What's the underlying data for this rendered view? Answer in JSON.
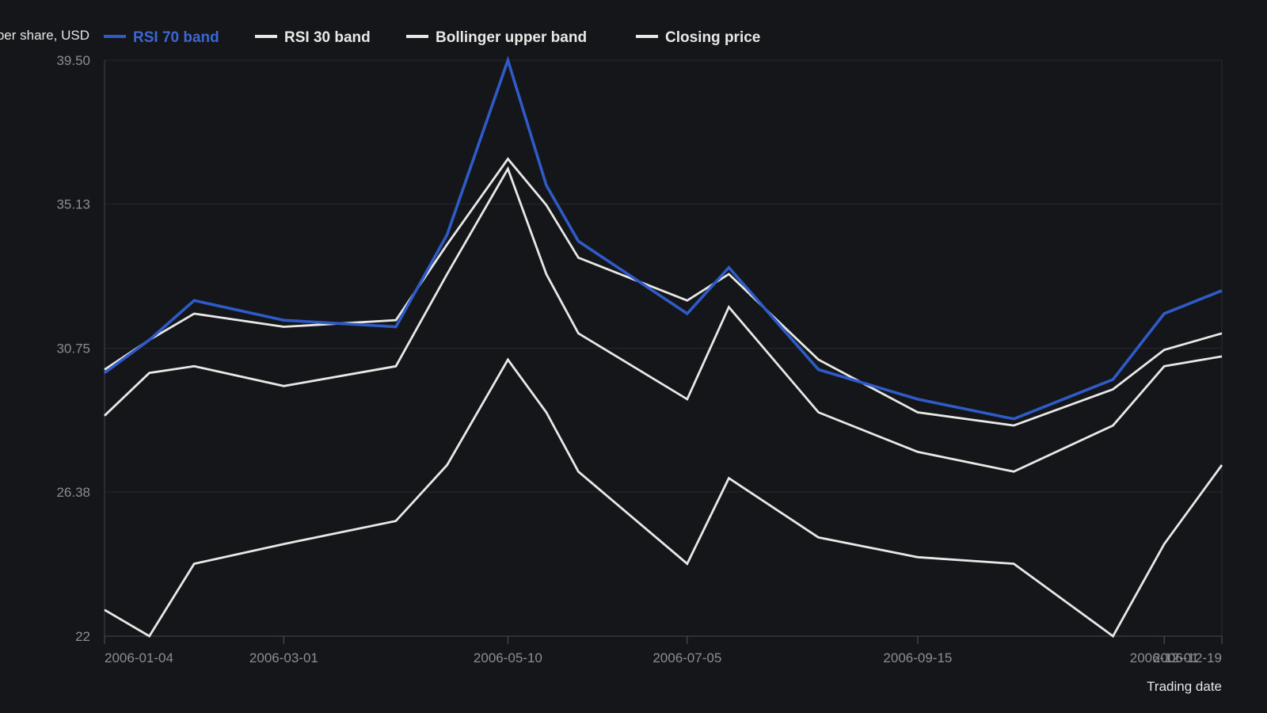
{
  "chart_data": {
    "type": "line",
    "ylabel": "Price per share, USD",
    "xlabel": "Trading date",
    "ylim": [
      22,
      39.5
    ],
    "y_ticks": [
      "22",
      "26.38",
      "30.75",
      "35.13",
      "39.50"
    ],
    "x_ticks": [
      "2006-01-04",
      "2006-03-01",
      "2006-05-10",
      "2006-07-05",
      "2006-09-15",
      "2006-12-01",
      "2006-12-19"
    ],
    "x": [
      "2006-01-04",
      "2006-01-18",
      "2006-02-01",
      "2006-03-01",
      "2006-04-05",
      "2006-04-21",
      "2006-05-10",
      "2006-05-22",
      "2006-06-01",
      "2006-07-05",
      "2006-07-18",
      "2006-08-15",
      "2006-09-15",
      "2006-10-15",
      "2006-11-15",
      "2006-12-01",
      "2006-12-19"
    ],
    "series": [
      {
        "name": "RSI 70 band",
        "color": "#2f5bc9",
        "values": [
          30.0,
          31.0,
          32.2,
          31.6,
          31.4,
          34.2,
          39.5,
          35.7,
          34.0,
          31.8,
          33.2,
          30.1,
          29.2,
          28.6,
          29.8,
          31.8,
          32.5
        ]
      },
      {
        "name": "RSI 30 band",
        "color": "#e8e8e6",
        "values": [
          30.1,
          31.0,
          31.8,
          31.4,
          31.6,
          33.9,
          36.5,
          35.1,
          33.5,
          32.2,
          33.0,
          30.4,
          28.8,
          28.4,
          29.5,
          30.7,
          31.2
        ]
      },
      {
        "name": "Bollinger upper band",
        "color": "#e8e8e6",
        "values": [
          28.7,
          30.0,
          30.2,
          29.6,
          30.2,
          33.0,
          36.2,
          33.0,
          31.2,
          29.2,
          32.0,
          28.8,
          27.6,
          27.0,
          28.4,
          30.2,
          30.5
        ]
      },
      {
        "name": "Closing price",
        "color": "#e8e8e6",
        "values": [
          22.8,
          22.0,
          24.2,
          24.8,
          25.5,
          27.2,
          30.4,
          28.8,
          27.0,
          24.2,
          26.8,
          25.0,
          24.4,
          24.2,
          22.0,
          24.8,
          27.2
        ]
      }
    ],
    "grid": "horizontal",
    "legend": "top"
  }
}
